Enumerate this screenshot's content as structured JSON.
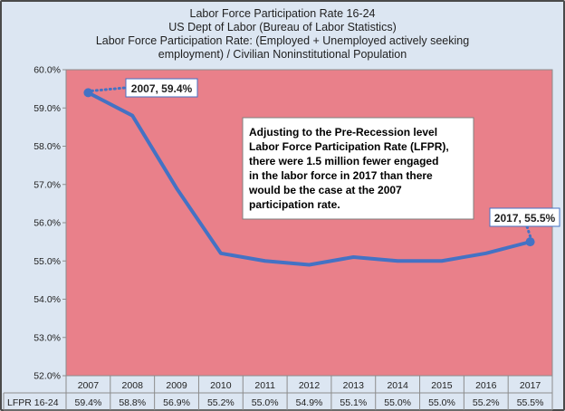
{
  "chart_data": {
    "type": "line",
    "title_lines": [
      "Labor Force Participation Rate 16-24",
      "US Dept of Labor (Bureau of Labor Statistics)",
      "Labor Force Participation Rate: (Employed + Unemployed actively seeking",
      "employment) / Civilian Noninstitutional Population"
    ],
    "categories": [
      "2007",
      "2008",
      "2009",
      "2010",
      "2011",
      "2012",
      "2013",
      "2014",
      "2015",
      "2016",
      "2017"
    ],
    "series": [
      {
        "name": "LFPR 16-24",
        "values": [
          59.4,
          58.8,
          56.9,
          55.2,
          55.0,
          54.9,
          55.1,
          55.0,
          55.0,
          55.2,
          55.5
        ],
        "value_labels": [
          "59.4%",
          "58.8%",
          "56.9%",
          "55.2%",
          "55.0%",
          "54.9%",
          "55.1%",
          "55.0%",
          "55.0%",
          "55.2%",
          "55.5%"
        ]
      }
    ],
    "ylim": [
      52.0,
      60.0
    ],
    "yticks": [
      "52.0%",
      "53.0%",
      "54.0%",
      "55.0%",
      "56.0%",
      "57.0%",
      "58.0%",
      "59.0%",
      "60.0%"
    ],
    "grid": false,
    "plot_background": "#e9808a",
    "line_color": "#4472c4",
    "figure_background": "#dce6f2",
    "annotations": {
      "start_label": "2007, 59.4%",
      "end_label": "2017, 55.5%",
      "note_lines": [
        "Adjusting to the Pre-Recession level",
        "Labor Force Participation Rate (LFPR),",
        "there were 1.5 million fewer engaged",
        "in the labor force in 2017 than there",
        "would be the case at the 2007",
        "participation rate."
      ]
    },
    "table_row_label": "LFPR 16-24"
  }
}
